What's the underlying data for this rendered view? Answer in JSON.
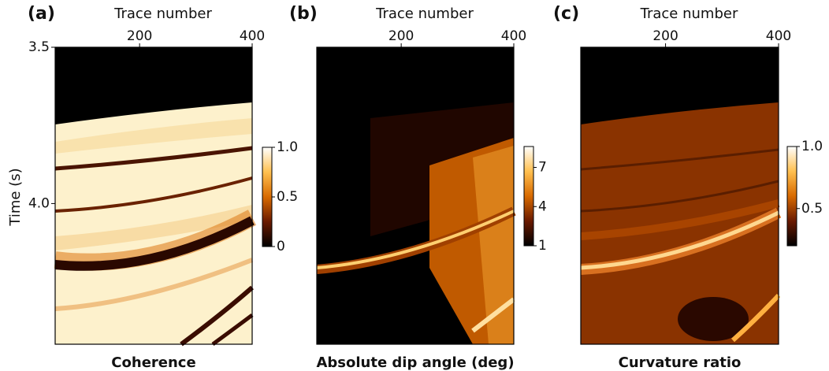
{
  "chart_data": [
    {
      "type": "heatmap",
      "panel_label": "(a)",
      "title": "Coherence",
      "xlabel": "Trace number",
      "ylabel": "Time (s)",
      "xlim": [
        50,
        400
      ],
      "xticks": [
        200,
        400
      ],
      "ylim": [
        4.45,
        3.5
      ],
      "yticks": [
        3.5,
        {
          "value": 4,
          "label": "4.0"
        }
      ],
      "cmap_colors": [
        "#000000",
        "#6a1a00",
        "#d86a00",
        "#ffc050",
        "#ffffff"
      ],
      "colorbar": {
        "clim": [
          0,
          1
        ],
        "ticks": [
          0,
          0.5,
          {
            "value": 1,
            "label": "1.0"
          }
        ]
      }
    },
    {
      "type": "heatmap",
      "panel_label": "(b)",
      "title": "Absolute dip angle (deg)",
      "xlabel": "Trace number",
      "xlim": [
        50,
        400
      ],
      "xticks": [
        200,
        400
      ],
      "cmap_colors": [
        "#000000",
        "#6a1a00",
        "#d86a00",
        "#ffc050",
        "#ffffff"
      ],
      "colorbar": {
        "clim": [
          1,
          8.6
        ],
        "ticks": [
          1,
          4,
          7
        ]
      }
    },
    {
      "type": "heatmap",
      "panel_label": "(c)",
      "title": "Curvature ratio",
      "xlabel": "Trace number",
      "xlim": [
        50,
        400
      ],
      "xticks": [
        200,
        400
      ],
      "cmap_colors": [
        "#000000",
        "#6a1a00",
        "#d86a00",
        "#ffc050",
        "#ffffff"
      ],
      "colorbar": {
        "clim": [
          0.2,
          1.0
        ],
        "ticks": [
          0.5,
          {
            "value": 1,
            "label": "1.0"
          }
        ]
      }
    }
  ]
}
